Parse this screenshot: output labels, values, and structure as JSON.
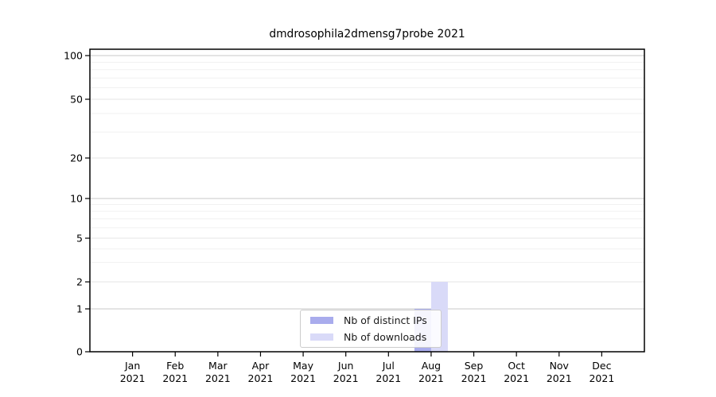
{
  "chart_data": {
    "type": "bar",
    "title": "dmdrosophila2dmensg7probe 2021",
    "months": [
      "Jan",
      "Feb",
      "Mar",
      "Apr",
      "May",
      "Jun",
      "Jul",
      "Aug",
      "Sep",
      "Oct",
      "Nov",
      "Dec"
    ],
    "year": "2021",
    "series": [
      {
        "name": "Nb of distinct IPs",
        "color": "#a9aced",
        "values": [
          0,
          0,
          0,
          0,
          0,
          0,
          0,
          1,
          0,
          0,
          0,
          0
        ]
      },
      {
        "name": "Nb of downloads",
        "color": "#d9daf8",
        "values": [
          0,
          0,
          0,
          0,
          0,
          0,
          0,
          2,
          0,
          0,
          0,
          0
        ]
      }
    ],
    "y_axis": {
      "scale": "log-like-with-zero",
      "major_ticks": [
        0,
        1,
        2,
        5,
        10,
        20,
        50,
        100
      ],
      "minor_ticks": [
        3,
        4,
        6,
        7,
        8,
        9,
        30,
        40,
        60,
        70,
        80,
        90
      ],
      "ylim": [
        0,
        110
      ]
    },
    "grid": "horizontal-only",
    "legend_position": "inside-bottom-center",
    "colors": {
      "gridline_decade": "#c9c9c9",
      "gridline_major": "#e4e4e4",
      "gridline_minor": "#f1f1f1",
      "spine": "#000000"
    }
  }
}
